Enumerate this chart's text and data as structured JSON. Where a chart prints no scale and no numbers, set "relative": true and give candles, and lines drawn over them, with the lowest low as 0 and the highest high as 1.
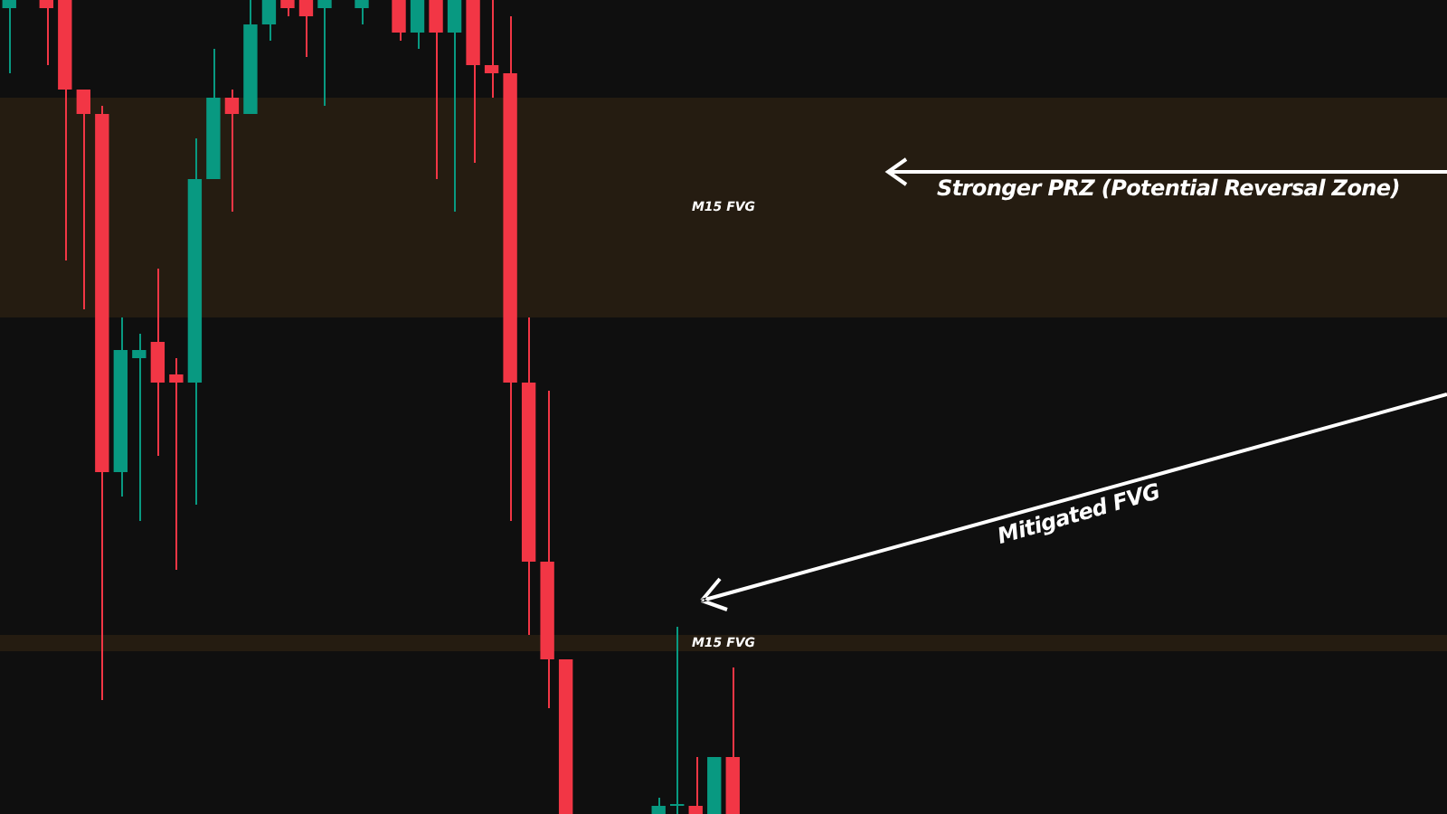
{
  "chart_data": {
    "type": "candlestick",
    "relative": true,
    "categories": [
      null,
      null,
      null,
      null,
      null,
      null,
      null,
      null,
      null,
      null,
      null,
      null,
      null,
      null,
      null,
      null,
      null,
      null,
      null,
      null,
      null,
      null,
      null,
      null,
      null,
      null,
      null,
      null,
      null,
      null,
      null,
      null,
      null,
      null,
      null,
      null,
      null,
      null,
      null,
      null,
      null,
      null,
      null,
      null,
      null,
      null,
      null,
      null,
      null,
      null,
      null,
      null,
      null,
      null,
      null,
      null,
      null,
      null,
      null,
      null,
      null,
      null,
      null,
      null,
      null,
      null,
      null,
      null,
      null,
      null,
      null,
      null,
      null,
      null,
      null,
      null,
      null,
      null
    ],
    "ohlc": [
      [
        0.99,
        1,
        0.91,
        1
      ],
      null,
      [
        1,
        1,
        0.92,
        0.99
      ],
      [
        1,
        1,
        0.68,
        0.89
      ],
      [
        0.89,
        0.89,
        0.62,
        0.86
      ],
      [
        0.86,
        0.87,
        0.14,
        0.42
      ],
      [
        0.42,
        0.61,
        0.39,
        0.57
      ],
      [
        0.56,
        0.59,
        0.36,
        0.57
      ],
      [
        0.58,
        0.67,
        0.44,
        0.53
      ],
      [
        0.54,
        0.56,
        0.3,
        0.53
      ],
      [
        0.53,
        0.83,
        0.38,
        0.78
      ],
      [
        0.78,
        0.94,
        0.78,
        0.88
      ],
      [
        0.88,
        0.89,
        0.74,
        0.86
      ],
      [
        0.86,
        1,
        0.86,
        0.97
      ],
      [
        0.97,
        1,
        0.95,
        1
      ],
      [
        1,
        1,
        0.98,
        0.99
      ],
      [
        1,
        1,
        0.93,
        0.98
      ],
      [
        0.99,
        1,
        0.87,
        1
      ],
      null,
      [
        0.99,
        1,
        0.97,
        1
      ],
      null,
      [
        1,
        1,
        0.95,
        0.96
      ],
      [
        0.96,
        1,
        0.94,
        1
      ],
      [
        1,
        1,
        0.78,
        0.96
      ],
      [
        0.96,
        1,
        0.74,
        1
      ],
      [
        1,
        1,
        0.8,
        0.92
      ],
      [
        0.92,
        1,
        0.88,
        0.91
      ],
      [
        0.91,
        0.98,
        0.36,
        0.53
      ],
      [
        0.53,
        0.61,
        0.22,
        0.31
      ],
      [
        0.31,
        0.52,
        0.13,
        0.19
      ],
      [
        0.19,
        0.19,
        0,
        0
      ],
      null,
      null,
      null,
      null,
      [
        0,
        0.02,
        0,
        0.01
      ],
      [
        0.01,
        0.23,
        0,
        0.01
      ],
      [
        0.01,
        0.07,
        0,
        0
      ],
      [
        0,
        0.07,
        0,
        0.07
      ],
      [
        0.07,
        0.18,
        0,
        0
      ],
      null,
      null,
      null,
      null,
      null,
      null,
      null,
      null,
      null,
      null,
      null,
      null,
      null,
      null,
      null,
      null,
      null,
      null,
      null,
      null,
      null,
      null,
      null,
      null,
      null,
      null,
      null,
      null,
      null,
      null,
      null,
      null,
      null,
      null,
      null,
      null,
      null,
      null
    ],
    "colors": [
      "#089981",
      null,
      "#f23645",
      "#f23645",
      "#f23645",
      "#f23645",
      "#089981",
      "#089981",
      "#f23645",
      "#f23645",
      "#089981",
      "#089981",
      "#f23645",
      "#089981",
      "#089981",
      "#f23645",
      "#f23645",
      "#089981",
      null,
      "#089981",
      null,
      "#f23645",
      "#089981",
      "#f23645",
      "#089981",
      "#f23645",
      "#f23645",
      "#f23645",
      "#f23645",
      "#f23645",
      "#f23645",
      null,
      null,
      null,
      null,
      "#089981",
      "#089981",
      "#f23645",
      "#089981",
      "#f23645",
      null,
      null,
      null,
      null,
      null,
      null,
      null,
      null,
      null,
      null,
      null,
      null,
      null,
      null,
      null,
      null,
      null,
      null,
      null,
      null,
      null,
      null,
      null,
      null,
      null,
      null,
      null,
      null,
      null,
      null,
      null,
      null,
      null,
      null,
      null,
      null,
      null,
      null
    ],
    "bands": [
      {
        "axis": "y",
        "from": 0.61,
        "to": 0.88,
        "label": "M15 FVG",
        "color": "#2b1f12"
      },
      {
        "axis": "y",
        "from": 0.2,
        "to": 0.22,
        "label": "M15 FVG",
        "color": "#2b1f12"
      }
    ],
    "annotations": [
      "Stronger PRZ (Potential Reversal Zone)",
      "Mitigated FVG"
    ],
    "legend": false
  }
}
